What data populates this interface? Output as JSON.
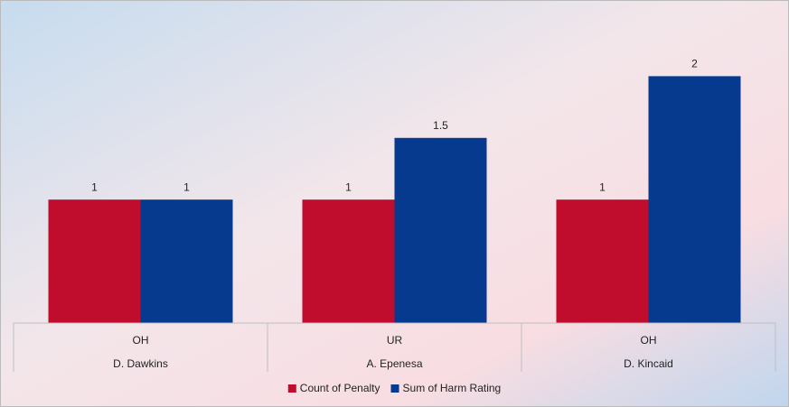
{
  "chart_data": {
    "type": "bar",
    "categories": [
      "OH",
      "UR",
      "OH"
    ],
    "groups": [
      "D. Dawkins",
      "A. Epenesa",
      "D. Kincaid"
    ],
    "series": [
      {
        "name": "Count of Penalty",
        "color": "#c00d2e",
        "values": [
          1,
          1,
          1
        ]
      },
      {
        "name": "Sum of Harm Rating",
        "color": "#063a8e",
        "values": [
          1,
          1.5,
          2
        ]
      }
    ],
    "ylim": [
      0,
      2.5
    ],
    "data_labels": true
  }
}
